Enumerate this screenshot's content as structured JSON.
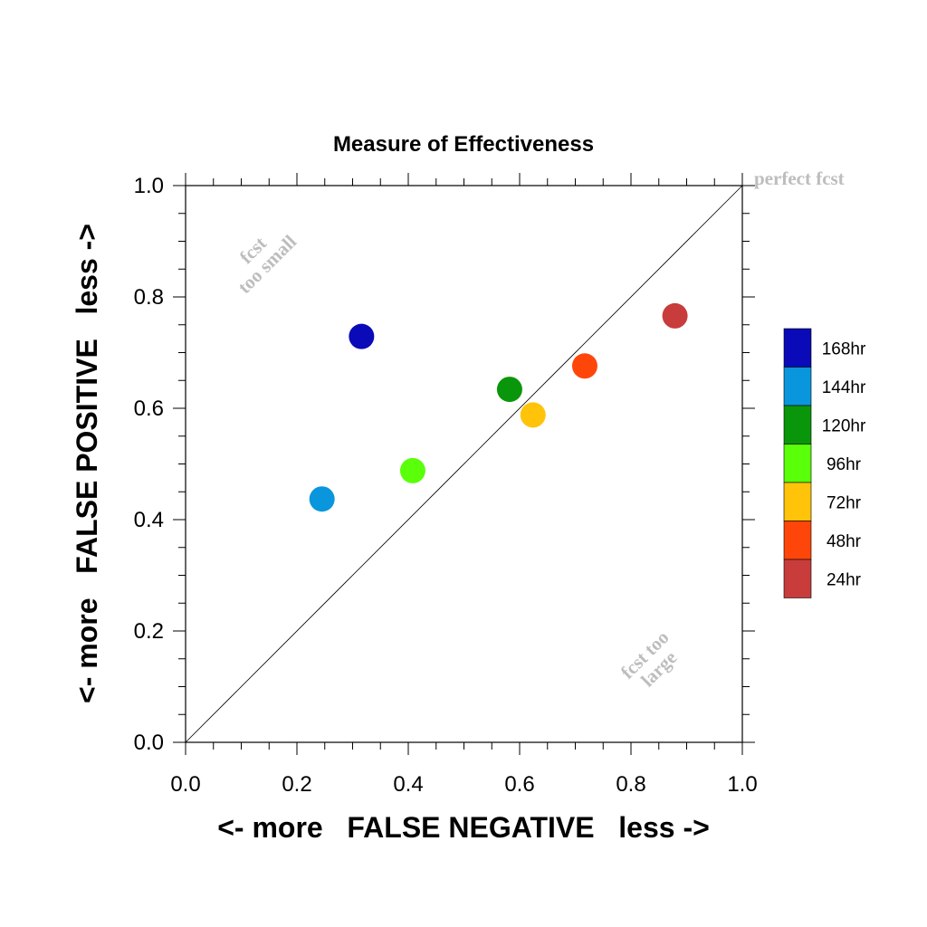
{
  "chart_data": {
    "type": "scatter",
    "title": "Measure of Effectiveness",
    "xlabel": "<- more   FALSE NEGATIVE   less ->",
    "ylabel": "<- more   FALSE POSITIVE   less ->",
    "xlim": [
      0.0,
      1.0
    ],
    "ylim": [
      0.0,
      1.0
    ],
    "x_ticks": [
      "0.0",
      "0.2",
      "0.4",
      "0.6",
      "0.8",
      "1.0"
    ],
    "y_ticks": [
      "0.0",
      "0.2",
      "0.4",
      "0.6",
      "0.8",
      "1.0"
    ],
    "grid": false,
    "diagonal_reference_line": true,
    "legend_position": "right",
    "series": [
      {
        "name": "168hr",
        "color": "#0a0ab8",
        "x": 0.316,
        "y": 0.729
      },
      {
        "name": "144hr",
        "color": "#0a96dc",
        "x": 0.245,
        "y": 0.437
      },
      {
        "name": "120hr",
        "color": "#0a960a",
        "x": 0.582,
        "y": 0.634
      },
      {
        "name": "96hr",
        "color": "#5aff0a",
        "x": 0.408,
        "y": 0.488
      },
      {
        "name": "72hr",
        "color": "#ffc30a",
        "x": 0.624,
        "y": 0.588
      },
      {
        "name": "48hr",
        "color": "#ff460a",
        "x": 0.717,
        "y": 0.676
      },
      {
        "name": "24hr",
        "color": "#c83c3c",
        "x": 0.879,
        "y": 0.766
      }
    ],
    "annotations": {
      "perfect": "perfect fcst",
      "small_line1": "fcst",
      "small_line2": "too small",
      "large_line1": "fcst too",
      "large_line2": "large"
    }
  }
}
